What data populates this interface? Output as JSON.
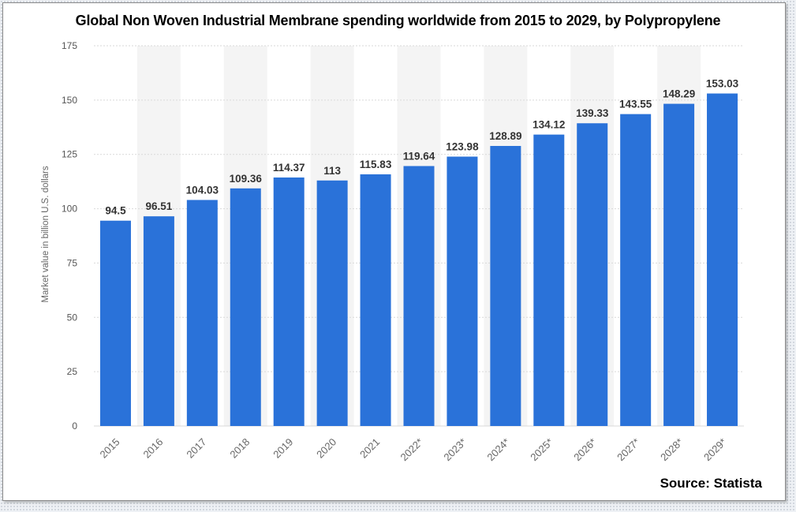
{
  "chart_data": {
    "type": "bar",
    "title": "Global Non Woven Industrial Membrane spending worldwide from 2015 to 2029, by Polypropylene",
    "ylabel": "Market value in billion U.S. dollars",
    "xlabel": "",
    "ylim": [
      0,
      175
    ],
    "yticks": [
      "0",
      "25",
      "50",
      "75",
      "100",
      "125",
      "150",
      "175"
    ],
    "categories": [
      "2015",
      "2016",
      "2017",
      "2018",
      "2019",
      "2020",
      "2021",
      "2022*",
      "2023*",
      "2024*",
      "2025*",
      "2026*",
      "2027*",
      "2028*",
      "2029*"
    ],
    "values": [
      94.5,
      96.51,
      104.03,
      109.36,
      114.37,
      113,
      115.83,
      119.64,
      123.98,
      128.89,
      134.12,
      139.33,
      143.55,
      148.29,
      153.03
    ],
    "value_labels": [
      "94.5",
      "96.51",
      "104.03",
      "109.36",
      "114.37",
      "113",
      "115.83",
      "119.64",
      "123.98",
      "128.89",
      "134.12",
      "139.33",
      "143.55",
      "148.29",
      "153.03"
    ],
    "grid": true,
    "legend": "none",
    "colors": {
      "bar": "#2a72d9",
      "band": "#f4f4f4",
      "grid": "#d9d9d9"
    }
  },
  "source_label": "Source: Statista"
}
